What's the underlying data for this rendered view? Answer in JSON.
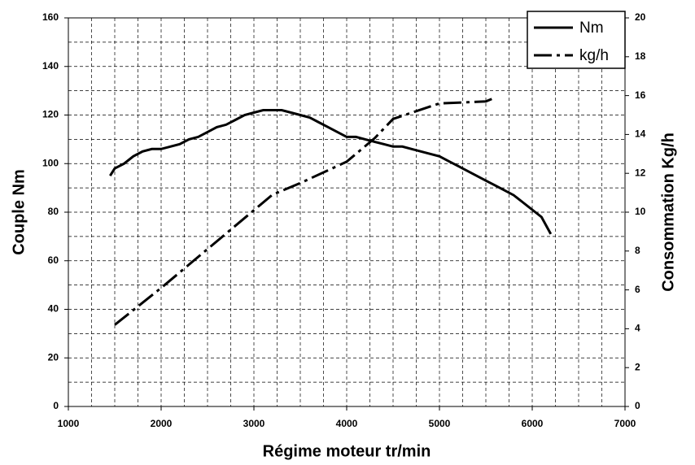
{
  "chart_data": {
    "type": "line",
    "x_label": "Régime moteur tr/min",
    "y_label": "Couple Nm",
    "y2_label": "Consommation Kg/h",
    "xlim": [
      1000,
      7000
    ],
    "xticks": [
      1000,
      2000,
      3000,
      4000,
      5000,
      6000,
      7000
    ],
    "ylim": [
      0,
      160
    ],
    "yticks": [
      0,
      20,
      40,
      60,
      80,
      100,
      120,
      140,
      160
    ],
    "y2lim": [
      0,
      20
    ],
    "y2ticks": [
      0,
      2,
      4,
      6,
      8,
      10,
      12,
      14,
      16,
      18,
      20
    ],
    "grid": true,
    "legend": "upper right",
    "series": [
      {
        "name": "Nm",
        "color": "#000000",
        "dash": "solid",
        "x": [
          1450,
          1500,
          1600,
          1700,
          1800,
          1900,
          2000,
          2100,
          2200,
          2300,
          2400,
          2500,
          2600,
          2700,
          2800,
          2900,
          3000,
          3100,
          3200,
          3300,
          3400,
          3500,
          3600,
          3700,
          3800,
          3900,
          4000,
          4100,
          4200,
          4300,
          4400,
          4500,
          4600,
          4700,
          4800,
          4900,
          5000,
          5100,
          5200,
          5300,
          5400,
          5500,
          5600,
          5700,
          5800,
          5900,
          6000,
          6100,
          6200
        ],
        "values": [
          95,
          98,
          100,
          103,
          105,
          106,
          106,
          107,
          108,
          110,
          111,
          113,
          115,
          116,
          118,
          120,
          121,
          122,
          122,
          122,
          121,
          120,
          119,
          117,
          115,
          113,
          111,
          111,
          110,
          109,
          108,
          107,
          107,
          106,
          105,
          104,
          103,
          101,
          99,
          97,
          95,
          93,
          91,
          89,
          87,
          84,
          81,
          78,
          71
        ]
      },
      {
        "name": "kg/h",
        "color": "#000000",
        "dash": "dashdot",
        "axis": "y2",
        "x": [
          1500,
          2000,
          2500,
          3000,
          3200,
          3500,
          4000,
          4300,
          4500,
          5000,
          5500,
          5600
        ],
        "values": [
          4.2,
          6.1,
          8.1,
          10.1,
          10.9,
          11.5,
          12.6,
          13.8,
          14.8,
          15.6,
          15.7,
          15.9
        ]
      }
    ]
  }
}
